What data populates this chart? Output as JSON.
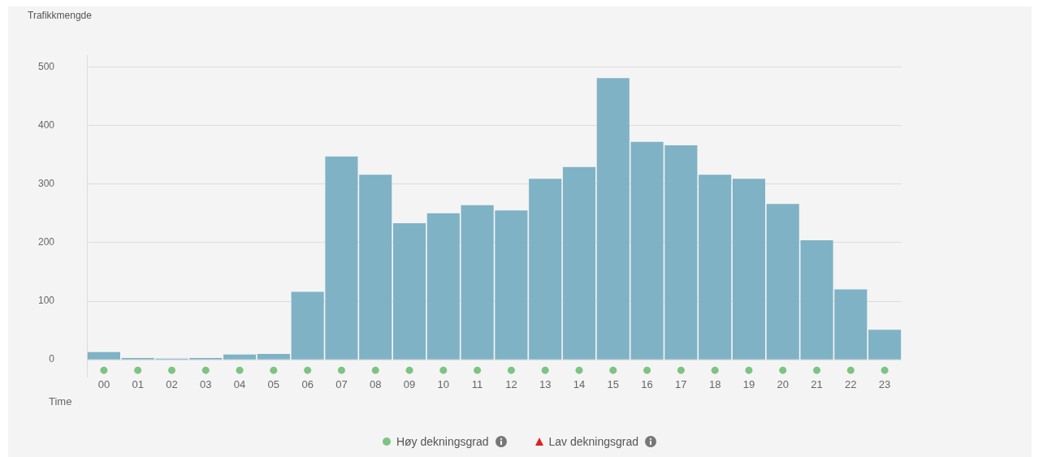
{
  "chart_data": {
    "type": "bar",
    "xlabel": "Time",
    "ylabel": "Trafikkmengde",
    "categories": [
      "00",
      "01",
      "02",
      "03",
      "04",
      "05",
      "06",
      "07",
      "08",
      "09",
      "10",
      "11",
      "12",
      "13",
      "14",
      "15",
      "16",
      "17",
      "18",
      "19",
      "20",
      "21",
      "22",
      "23"
    ],
    "ylim": [
      -30,
      520
    ],
    "yticks": [
      0,
      100,
      200,
      300,
      400,
      500
    ],
    "grid": "y",
    "legend": "bottom",
    "series": [
      {
        "color": "#7fb2c5",
        "values": [
          13,
          3,
          2,
          3,
          9,
          10,
          116,
          347,
          316,
          233,
          250,
          264,
          255,
          309,
          329,
          481,
          372,
          366,
          316,
          309,
          266,
          204,
          120,
          51
        ]
      },
      {
        "name": "Høy dekningsgrad",
        "type": "scatter",
        "marker": "circle",
        "color": "#7dc383",
        "values": [
          -18,
          -18,
          -18,
          -18,
          -18,
          -18,
          -18,
          -18,
          -18,
          -18,
          -18,
          -18,
          -18,
          -18,
          -18,
          -18,
          -18,
          -18,
          -18,
          -18,
          -18,
          -18,
          -18,
          -18
        ]
      },
      {
        "name": "Lav dekningsgrad",
        "type": "scatter",
        "marker": "triangle",
        "color": "#e02020",
        "values": [
          null,
          null,
          null,
          null,
          null,
          null,
          null,
          null,
          null,
          null,
          null,
          null,
          null,
          null,
          null,
          null,
          null,
          null,
          null,
          null,
          null,
          null,
          null,
          null
        ]
      }
    ]
  }
}
